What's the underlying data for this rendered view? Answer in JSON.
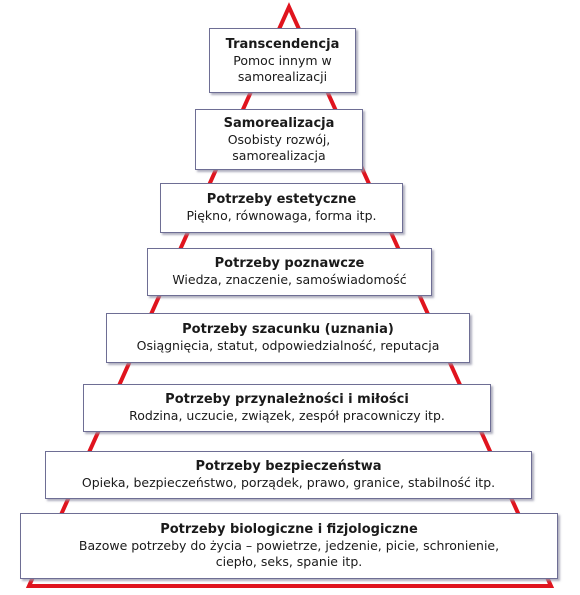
{
  "colors": {
    "triangle": "#e0141e",
    "box_border": "#6e6e94"
  },
  "levels": [
    {
      "title": "Transcendencja",
      "desc": "Pomoc innym w\nsamorealizacji"
    },
    {
      "title": "Samorealizacja",
      "desc": "Osobisty rozwój,\nsamorealizacja"
    },
    {
      "title": "Potrzeby estetyczne",
      "desc": "Piękno, równowaga, forma itp."
    },
    {
      "title": "Potrzeby poznawcze",
      "desc": "Wiedza, znaczenie, samoświadomość"
    },
    {
      "title": "Potrzeby szacunku (uznania)",
      "desc": "Osiągnięcia, statut, odpowiedzialność, reputacja"
    },
    {
      "title": "Potrzeby przynależności i miłości",
      "desc": "Rodzina, uczucie, związek, zespół pracowniczy itp."
    },
    {
      "title": "Potrzeby bezpieczeństwa",
      "desc": "Opieka, bezpieczeństwo, porządek, prawo, granice, stabilność itp."
    },
    {
      "title": "Potrzeby biologiczne i fizjologiczne",
      "desc": "Bazowe potrzeby do życia – powietrze, jedzenie, picie, schronienie,\nciepło, seks, spanie itp."
    }
  ]
}
